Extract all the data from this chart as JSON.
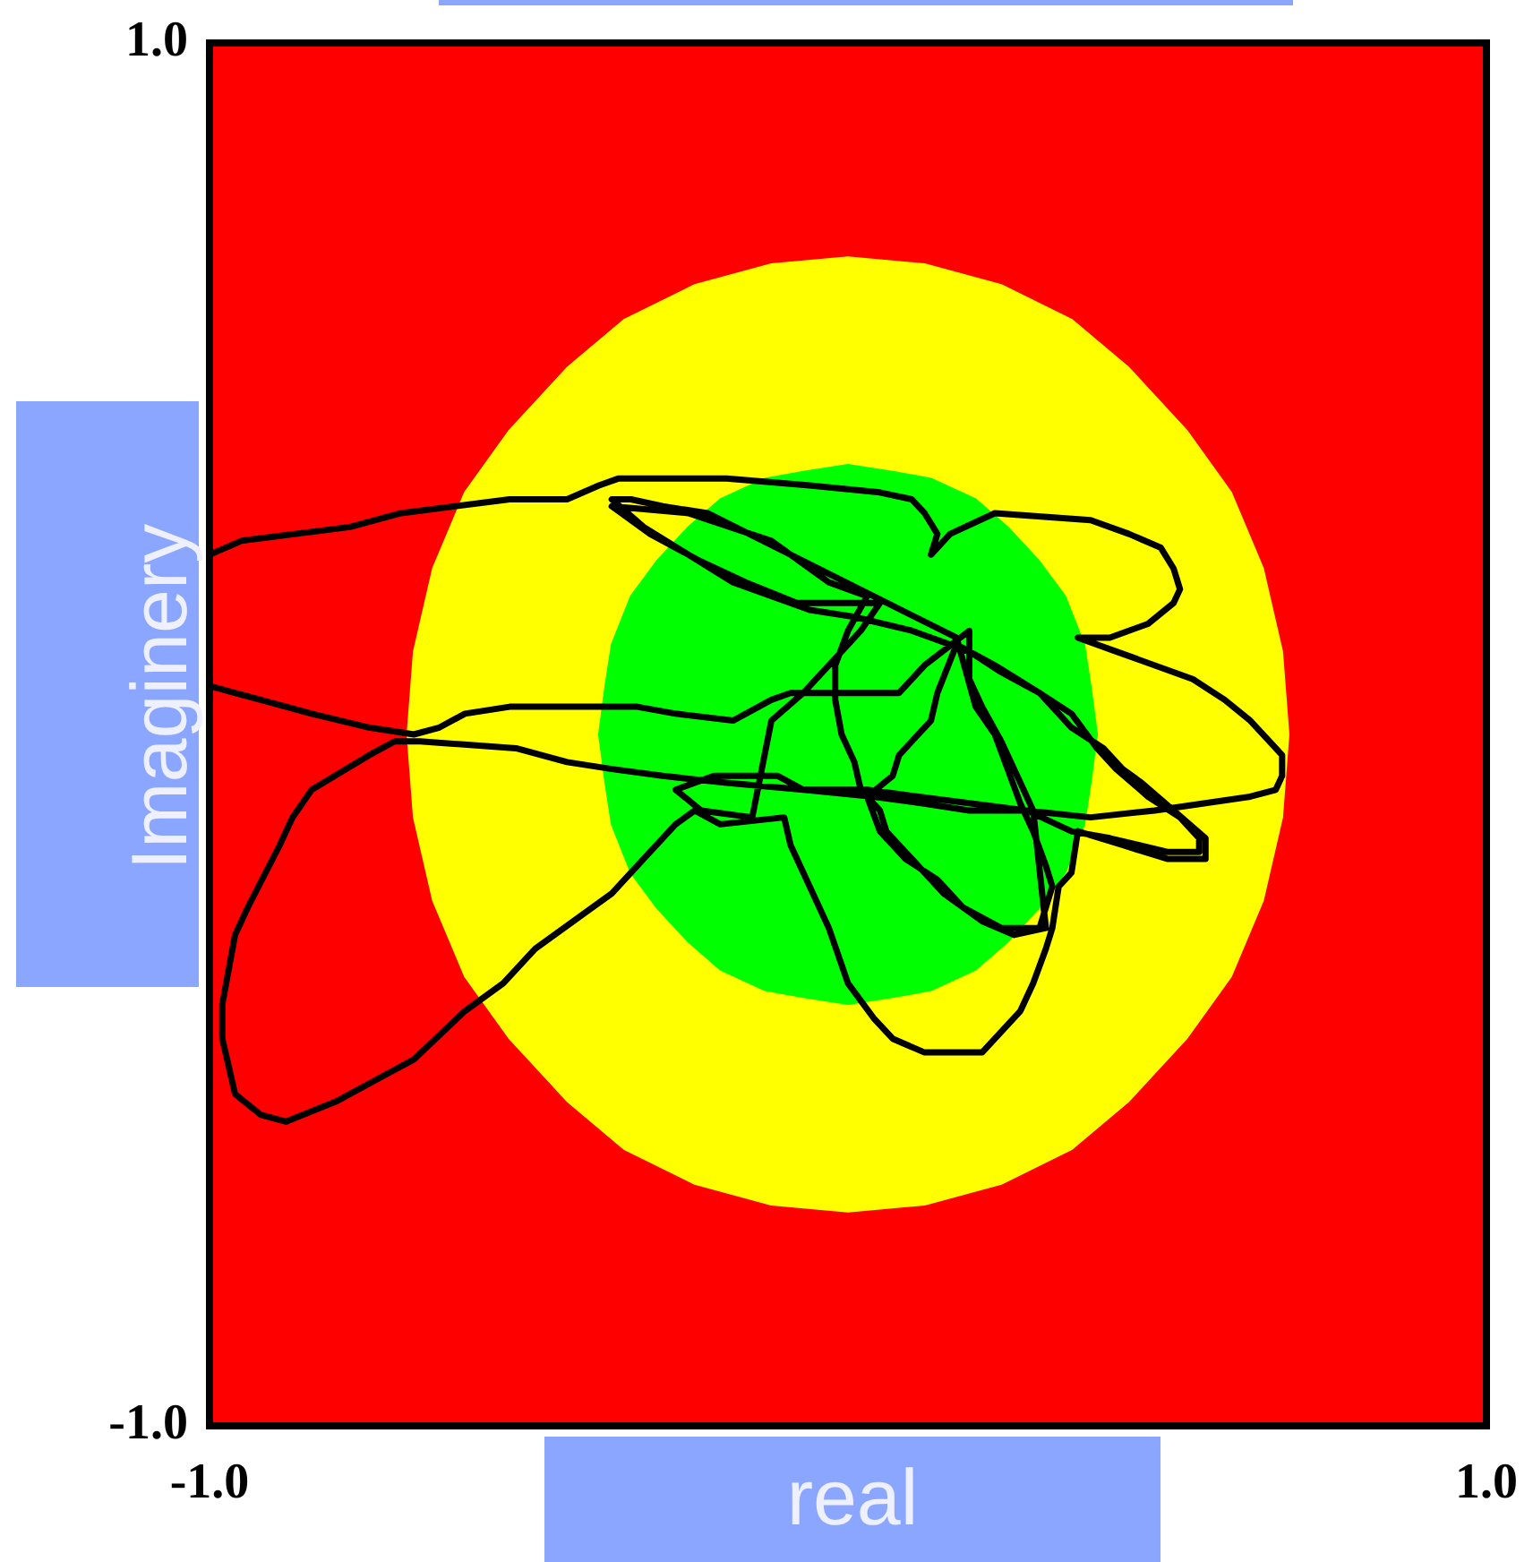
{
  "chart_data": {
    "type": "line",
    "xlabel": "real",
    "ylabel": "Imaginery",
    "xlim": [
      -1,
      1
    ],
    "ylim": [
      -1,
      1
    ],
    "xticks": [
      {
        "value": -1,
        "label": "-1.0"
      },
      {
        "value": 1,
        "label": "1.0"
      }
    ],
    "yticks": [
      {
        "value": -1,
        "label": "-1.0"
      },
      {
        "value": 1,
        "label": "1.0"
      }
    ],
    "series": [
      {
        "type": "area",
        "color": "#ffff00",
        "x": [
          0.69,
          0.68,
          0.65,
          0.6,
          0.53,
          0.44,
          0.35,
          0.24,
          0.12,
          0,
          -0.12,
          -0.24,
          -0.35,
          -0.44,
          -0.53,
          -0.6,
          -0.65,
          -0.68,
          -0.69,
          -0.68,
          -0.65,
          -0.6,
          -0.53,
          -0.44,
          -0.35,
          -0.24,
          -0.12,
          0,
          0.12,
          0.24,
          0.35,
          0.44,
          0.53,
          0.6,
          0.65,
          0.68,
          0.69
        ],
        "values": [
          0,
          0.12,
          0.24,
          0.35,
          0.44,
          0.53,
          0.6,
          0.65,
          0.68,
          0.69,
          0.68,
          0.65,
          0.6,
          0.53,
          0.44,
          0.35,
          0.24,
          0.12,
          0,
          -0.12,
          -0.24,
          -0.35,
          -0.44,
          -0.53,
          -0.6,
          -0.65,
          -0.68,
          -0.69,
          -0.68,
          -0.65,
          -0.6,
          -0.53,
          -0.44,
          -0.35,
          -0.24,
          -0.12,
          0
        ]
      },
      {
        "type": "area",
        "color": "#00ff00",
        "x": [
          0.39,
          0.38,
          0.37,
          0.34,
          0.3,
          0.25,
          0.2,
          0.13,
          0.07,
          0,
          -0.07,
          -0.13,
          -0.2,
          -0.25,
          -0.3,
          -0.34,
          -0.37,
          -0.38,
          -0.39,
          -0.38,
          -0.37,
          -0.34,
          -0.3,
          -0.25,
          -0.2,
          -0.13,
          -0.07,
          0,
          0.07,
          0.13,
          0.2,
          0.25,
          0.3,
          0.34,
          0.37,
          0.38,
          0.39
        ],
        "values": [
          0,
          0.07,
          0.13,
          0.2,
          0.25,
          0.3,
          0.34,
          0.37,
          0.38,
          0.39,
          0.38,
          0.37,
          0.34,
          0.3,
          0.25,
          0.2,
          0.13,
          0.07,
          0,
          -0.07,
          -0.13,
          -0.2,
          -0.25,
          -0.3,
          -0.34,
          -0.37,
          -0.38,
          -0.39,
          -0.38,
          -0.37,
          -0.34,
          -0.3,
          -0.25,
          -0.2,
          -0.13,
          -0.07,
          0
        ]
      },
      {
        "type": "line",
        "color": "#000000",
        "x": [
          -1,
          -0.95,
          -0.78,
          -0.7,
          -0.53,
          -0.44,
          -0.39,
          -0.36,
          -0.32,
          -0.19,
          -0.06,
          0.05,
          0.1,
          0.12,
          0.14,
          0.13,
          0.16,
          0.23,
          0.38,
          0.44,
          0.49,
          0.51,
          0.52,
          0.51,
          0.47,
          0.41,
          0.36,
          0.42,
          0.54,
          0.59,
          0.63,
          0.66,
          0.68,
          0.68,
          0.67,
          0.63,
          0.48,
          0.38,
          0.28,
          0.19,
          0.12,
          0.04,
          -0.07,
          -0.19,
          -0.29,
          -0.37,
          -0.44,
          -0.52,
          -0.67,
          -0.71,
          -0.75,
          -0.84,
          -0.87,
          -0.89,
          -0.94,
          -0.96,
          -0.98,
          -0.98,
          -0.97,
          -0.96,
          -0.92,
          -0.88,
          -0.8,
          -0.74,
          -0.68,
          -0.6,
          -0.54,
          -0.49,
          -0.37,
          -0.32,
          -0.27,
          -0.24,
          -0.2,
          -0.1,
          -0.09,
          -0.05,
          -0.03,
          0,
          0.04,
          0.07,
          0.12,
          0.21,
          0.27,
          0.29,
          0.31,
          0.32,
          0.33,
          0.35,
          0.36,
          0.43,
          0.5,
          0.56,
          0.56,
          0.51,
          0.46,
          0.43,
          0.4,
          0.35,
          0.3,
          0.24,
          0.19,
          0.1,
          0.01,
          -0.06,
          -0.18,
          -0.25,
          -0.32,
          -0.37,
          -0.34,
          -0.29,
          -0.22,
          0.04,
          0.17,
          0.2,
          0.23,
          0.25,
          0.27,
          0.29,
          0.31,
          0.32,
          0.3,
          0.24,
          0.18,
          0.14,
          0.09,
          0.05,
          0.03,
          0.07,
          0.08,
          0.13,
          0.14,
          0.17,
          0.23,
          0.3,
          0.35,
          0.39,
          0.42,
          0.47,
          0.52,
          0.55,
          0.55,
          0.5,
          0.41,
          0.35,
          0.28,
          0.11,
          0.03,
          -0.07,
          -0.11,
          -0.21,
          -0.27,
          -0.23,
          -0.15,
          -0.12,
          -0.07,
          -0.02,
          0.02,
          0.05,
          0,
          -0.08,
          -0.16,
          -0.23,
          -0.31,
          -0.37,
          -0.25,
          -0.12,
          -0.03,
          0.03,
          0,
          -0.02,
          -0.02,
          -0.01,
          0.01,
          0.02,
          0.05,
          0.06,
          0.1,
          0.15,
          0.21,
          0.26,
          0.31,
          0.29,
          0.27,
          0.24,
          0.21,
          0.19,
          0.19,
          0.12,
          0.08,
          -0.01,
          -0.09,
          -0.12,
          -0.18,
          -0.27,
          -0.33,
          -0.39,
          -0.53,
          -0.6,
          -0.64,
          -0.68,
          -0.75,
          -0.84,
          -0.92,
          -1
        ],
        "values": [
          0.26,
          0.28,
          0.3,
          0.32,
          0.34,
          0.34,
          0.36,
          0.37,
          0.37,
          0.37,
          0.36,
          0.35,
          0.34,
          0.32,
          0.29,
          0.26,
          0.29,
          0.32,
          0.31,
          0.29,
          0.27,
          0.24,
          0.21,
          0.19,
          0.16,
          0.14,
          0.14,
          0.12,
          0.08,
          0.05,
          0.02,
          -0.01,
          -0.03,
          -0.06,
          -0.08,
          -0.09,
          -0.11,
          -0.12,
          -0.11,
          -0.11,
          -0.1,
          -0.09,
          -0.08,
          -0.07,
          -0.06,
          -0.05,
          -0.04,
          -0.02,
          -0.01,
          -0.01,
          -0.03,
          -0.08,
          -0.12,
          -0.16,
          -0.25,
          -0.29,
          -0.39,
          -0.44,
          -0.48,
          -0.52,
          -0.55,
          -0.56,
          -0.53,
          -0.5,
          -0.47,
          -0.4,
          -0.36,
          -0.31,
          -0.23,
          -0.18,
          -0.13,
          -0.11,
          -0.13,
          -0.12,
          -0.16,
          -0.24,
          -0.28,
          -0.36,
          -0.41,
          -0.44,
          -0.46,
          -0.46,
          -0.4,
          -0.36,
          -0.31,
          -0.28,
          -0.22,
          -0.2,
          -0.14,
          -0.16,
          -0.18,
          -0.18,
          -0.15,
          -0.11,
          -0.07,
          -0.05,
          -0.02,
          0.01,
          0.06,
          0.09,
          0.12,
          0.15,
          0.17,
          0.18,
          0.22,
          0.26,
          0.3,
          0.34,
          0.34,
          0.33,
          0.32,
          0.2,
          0.14,
          0.04,
          0,
          -0.05,
          -0.1,
          -0.14,
          -0.19,
          -0.22,
          -0.28,
          -0.28,
          -0.25,
          -0.21,
          -0.18,
          -0.14,
          -0.09,
          -0.06,
          -0.03,
          0.02,
          0.06,
          0.13,
          0.1,
          0.06,
          0.03,
          -0.02,
          -0.05,
          -0.09,
          -0.12,
          -0.15,
          -0.17,
          -0.17,
          -0.15,
          -0.14,
          -0.11,
          -0.09,
          -0.08,
          -0.08,
          -0.06,
          -0.06,
          -0.08,
          -0.11,
          -0.12,
          0.02,
          0.06,
          0.11,
          0.15,
          0.19,
          0.19,
          0.19,
          0.22,
          0.25,
          0.29,
          0.33,
          0.32,
          0.28,
          0.22,
          0.2,
          0.15,
          0.1,
          0.05,
          0,
          -0.04,
          -0.08,
          -0.11,
          -0.14,
          -0.18,
          -0.23,
          -0.27,
          -0.29,
          -0.28,
          -0.11,
          -0.07,
          -0.01,
          0.04,
          0.08,
          0.15,
          0.1,
          0.06,
          0.06,
          0.06,
          0.05,
          0.02,
          0.03,
          0.04,
          0.04,
          0.04,
          0.03,
          0.01,
          0,
          0.01,
          0.03,
          0.05,
          0.07
        ]
      }
    ]
  }
}
